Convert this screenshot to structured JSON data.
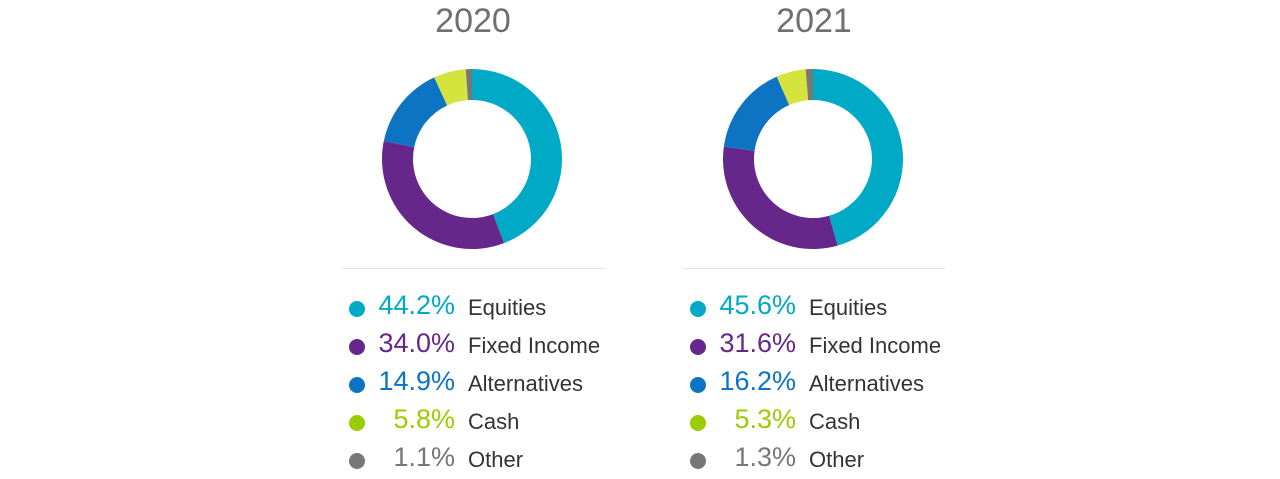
{
  "colors": {
    "equities": "#00a9c6",
    "fixed_income": "#65288a",
    "alternatives": "#0d74c4",
    "cash_dot": "#9acd00",
    "cash_slice": "#d4e33d",
    "other": "#777777"
  },
  "chart_data": [
    {
      "type": "pie",
      "title": "2020",
      "categories": [
        "Equities",
        "Fixed Income",
        "Alternatives",
        "Cash",
        "Other"
      ],
      "values": [
        44.2,
        34.0,
        14.9,
        5.8,
        1.1
      ],
      "value_labels": [
        "44.2%",
        "34.0%",
        "14.9%",
        "5.8%",
        "1.1%"
      ],
      "colors": [
        "#00a9c6",
        "#65288a",
        "#0d74c4",
        "#d4e33d",
        "#777777"
      ],
      "legend_colors": [
        "#00a9c6",
        "#65288a",
        "#0d74c4",
        "#9acd00",
        "#777777"
      ],
      "label_colors": [
        "#00a9c6",
        "#65288a",
        "#0d74c4",
        "#9acd00",
        "#777777"
      ],
      "style": "donut",
      "legend_position": "bottom"
    },
    {
      "type": "pie",
      "title": "2021",
      "categories": [
        "Equities",
        "Fixed Income",
        "Alternatives",
        "Cash",
        "Other"
      ],
      "values": [
        45.6,
        31.6,
        16.2,
        5.3,
        1.3
      ],
      "value_labels": [
        "45.6%",
        "31.6%",
        "16.2%",
        "5.3%",
        "1.3%"
      ],
      "colors": [
        "#00a9c6",
        "#65288a",
        "#0d74c4",
        "#d4e33d",
        "#777777"
      ],
      "legend_colors": [
        "#00a9c6",
        "#65288a",
        "#0d74c4",
        "#9acd00",
        "#777777"
      ],
      "label_colors": [
        "#00a9c6",
        "#65288a",
        "#0d74c4",
        "#9acd00",
        "#777777"
      ],
      "style": "donut",
      "legend_position": "bottom"
    }
  ]
}
